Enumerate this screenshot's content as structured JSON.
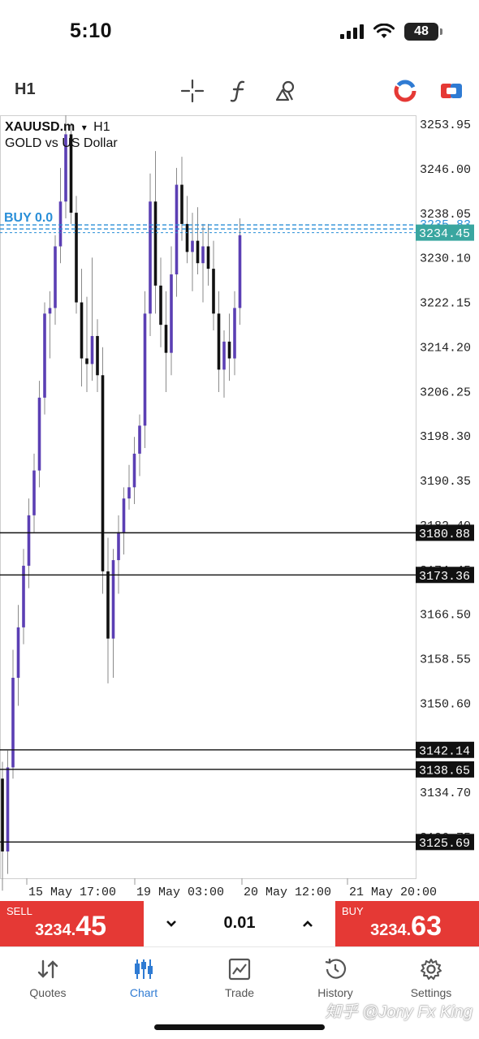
{
  "status_bar": {
    "time": "5:10",
    "battery": "48"
  },
  "toolbar": {
    "timeframe": "H1",
    "icons": [
      "crosshair-icon",
      "function-icon",
      "objects-icon",
      "metaquotes-icon",
      "one-click-trading-icon"
    ]
  },
  "chart": {
    "symbol": "XAUUSD.m",
    "timeframe": "H1",
    "description": "GOLD vs US Dollar",
    "dropdown_glyph": "▾",
    "buy_order_label": "BUY 0.0",
    "price_scale": [
      "3253.95",
      "3246.00",
      "3238.05",
      "3230.10",
      "3222.15",
      "3214.20",
      "3206.25",
      "3198.30",
      "3190.35",
      "3182.40",
      "3174.45",
      "3166.50",
      "3158.55",
      "3150.60",
      "3134.70",
      "3126.75"
    ],
    "time_labels": [
      "15 May 17:00",
      "19 May 03:00",
      "20 May 12:00",
      "21 May 20:00"
    ],
    "current_price": "3234.45",
    "order_line_price": "3235.83",
    "horizontal_lines": [
      "3180.88",
      "3173.36",
      "3142.14",
      "3138.65",
      "3125.69"
    ],
    "colors": {
      "bull_candle": "#5b3fb4",
      "bear_candle": "#111111",
      "price_tag": "#3aa6a0",
      "order_line": "#2a8fd8"
    }
  },
  "chart_data": {
    "type": "candlestick",
    "symbol": "XAUUSD.m",
    "timeframe": "H1",
    "ylim": [
      3117,
      3258
    ],
    "ohlc": [
      [
        3137,
        3140,
        3117,
        3124
      ],
      [
        3124,
        3142,
        3120,
        3139
      ],
      [
        3139,
        3160,
        3137,
        3155
      ],
      [
        3155,
        3168,
        3150,
        3164
      ],
      [
        3164,
        3178,
        3161,
        3175
      ],
      [
        3175,
        3187,
        3171,
        3184
      ],
      [
        3184,
        3195,
        3181,
        3192
      ],
      [
        3192,
        3208,
        3189,
        3205
      ],
      [
        3205,
        3222,
        3202,
        3220
      ],
      [
        3220,
        3224,
        3212,
        3221
      ],
      [
        3221,
        3234,
        3218,
        3232
      ],
      [
        3232,
        3246,
        3229,
        3240
      ],
      [
        3240,
        3257,
        3237,
        3252
      ],
      [
        3252,
        3254,
        3236,
        3238
      ],
      [
        3238,
        3241,
        3220,
        3222
      ],
      [
        3222,
        3228,
        3207,
        3212
      ],
      [
        3212,
        3223,
        3206,
        3211
      ],
      [
        3211,
        3230,
        3208,
        3216
      ],
      [
        3216,
        3219,
        3206,
        3209
      ],
      [
        3209,
        3214,
        3170,
        3174
      ],
      [
        3174,
        3180,
        3154,
        3162
      ],
      [
        3162,
        3178,
        3155,
        3176
      ],
      [
        3176,
        3184,
        3170,
        3181
      ],
      [
        3181,
        3189,
        3177,
        3187
      ],
      [
        3187,
        3193,
        3185,
        3189
      ],
      [
        3189,
        3198,
        3186,
        3195
      ],
      [
        3195,
        3202,
        3191,
        3200
      ],
      [
        3200,
        3224,
        3196,
        3220
      ],
      [
        3220,
        3245,
        3216,
        3240
      ],
      [
        3240,
        3249,
        3220,
        3225
      ],
      [
        3225,
        3230,
        3214,
        3218
      ],
      [
        3218,
        3224,
        3206,
        3213
      ],
      [
        3213,
        3232,
        3209,
        3227
      ],
      [
        3227,
        3246,
        3223,
        3243
      ],
      [
        3243,
        3248,
        3233,
        3236
      ],
      [
        3236,
        3241,
        3229,
        3231
      ],
      [
        3231,
        3238,
        3224,
        3233
      ],
      [
        3233,
        3239,
        3227,
        3229
      ],
      [
        3229,
        3236,
        3222,
        3232
      ],
      [
        3232,
        3236,
        3225,
        3228
      ],
      [
        3228,
        3233,
        3217,
        3220
      ],
      [
        3220,
        3224,
        3206,
        3210
      ],
      [
        3210,
        3217,
        3205,
        3215
      ],
      [
        3215,
        3220,
        3208,
        3212
      ],
      [
        3212,
        3224,
        3209,
        3221
      ],
      [
        3221,
        3237,
        3218,
        3234
      ]
    ]
  },
  "trade": {
    "sell_label": "SELL",
    "sell_price_main": "3234.",
    "sell_price_big": "45",
    "buy_label": "BUY",
    "buy_price_main": "3234.",
    "buy_price_big": "63",
    "lot": "0.01",
    "lot_down": "⌄",
    "lot_up": "⌃"
  },
  "tabs": [
    {
      "label": "Quotes",
      "active": false
    },
    {
      "label": "Chart",
      "active": true
    },
    {
      "label": "Trade",
      "active": false
    },
    {
      "label": "History",
      "active": false
    },
    {
      "label": "Settings",
      "active": false
    }
  ],
  "watermark": "知乎 @Jony Fx King"
}
